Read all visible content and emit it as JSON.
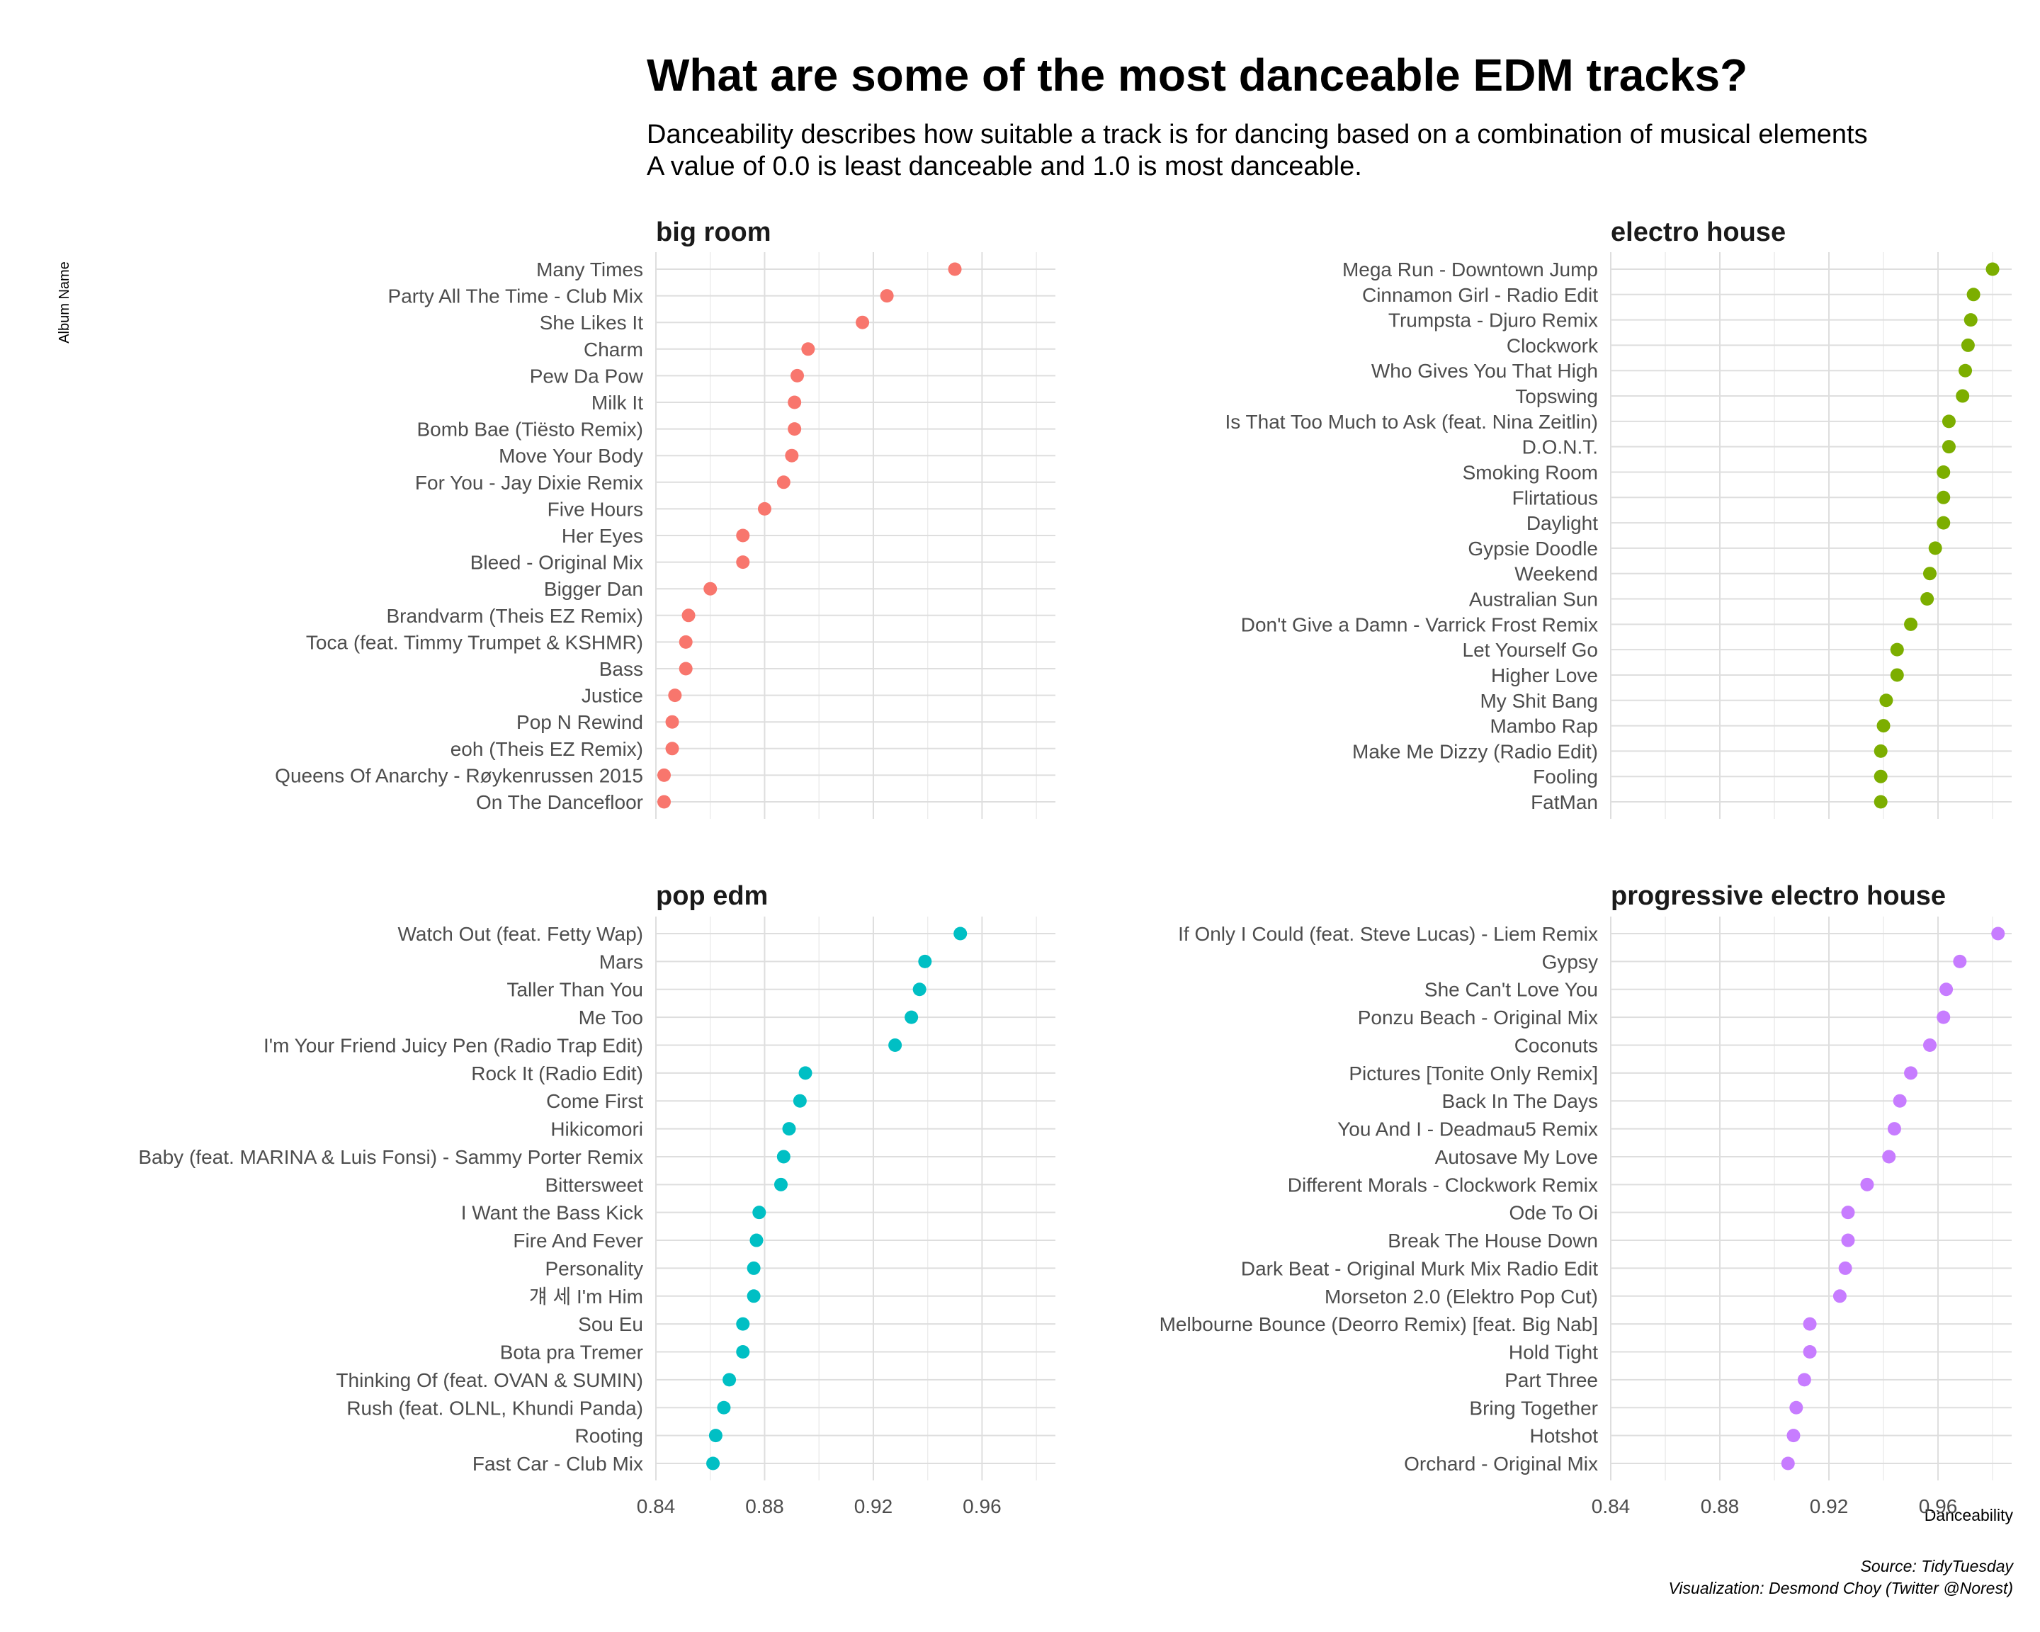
{
  "title": "What are some of the most danceable EDM tracks?",
  "subtitle_line1": "Danceability describes how suitable a track is for dancing based on a combination of musical elements",
  "subtitle_line2": "A value of 0.0 is least danceable and 1.0 is most danceable.",
  "caption_line1": "Source: TidyTuesday",
  "caption_line2": "Visualization: Desmond Choy (Twitter @Norest)",
  "chart_data": {
    "type": "scatter",
    "xlabel": "Danceability",
    "ylabel": "Album Name",
    "xlim": [
      0.84,
      0.987
    ],
    "xticks": [
      "0.84",
      "0.88",
      "0.92",
      "0.96"
    ],
    "xtick_values": [
      0.84,
      0.88,
      0.92,
      0.96
    ],
    "grid": true,
    "legend": "none",
    "panels": [
      {
        "name": "big room",
        "color": "#F8766D",
        "tracks": [
          "Many Times",
          "Party All The Time - Club Mix",
          "She Likes It",
          "Charm",
          "Pew Da Pow",
          "Milk It",
          "Bomb Bae (Tiësto Remix)",
          "Move Your Body",
          "For You - Jay Dixie Remix",
          "Five Hours",
          "Her Eyes",
          "Bleed - Original Mix",
          "Bigger Dan",
          "Brandvarm (Theis EZ Remix)",
          "Toca (feat. Timmy Trumpet & KSHMR)",
          "Bass",
          "Justice",
          "Pop N Rewind",
          "eoh (Theis EZ Remix)",
          "Queens Of Anarchy - Røykenrussen 2015",
          "On The Dancefloor"
        ],
        "values": [
          0.95,
          0.925,
          0.916,
          0.896,
          0.892,
          0.891,
          0.891,
          0.89,
          0.887,
          0.88,
          0.872,
          0.872,
          0.86,
          0.852,
          0.851,
          0.851,
          0.847,
          0.846,
          0.846,
          0.843,
          0.843
        ]
      },
      {
        "name": "electro house",
        "color": "#7CAE00",
        "tracks": [
          "Mega Run - Downtown Jump",
          "Cinnamon Girl - Radio Edit",
          "Trumpsta - Djuro Remix",
          "Clockwork",
          "Who Gives You That High",
          "Topswing",
          "Is That Too Much to Ask (feat. Nina Zeitlin)",
          "D.O.N.T.",
          "Smoking Room",
          "Flirtatious",
          "Daylight",
          "Gypsie Doodle",
          "Weekend",
          "Australian Sun",
          "Don't Give a Damn - Varrick Frost Remix",
          "Let Yourself Go",
          "Higher Love",
          "My Shit Bang",
          "Mambo Rap",
          "Make Me Dizzy (Radio Edit)",
          "Fooling",
          "FatMan"
        ],
        "values": [
          0.98,
          0.973,
          0.972,
          0.971,
          0.97,
          0.969,
          0.964,
          0.964,
          0.962,
          0.962,
          0.962,
          0.959,
          0.957,
          0.956,
          0.95,
          0.945,
          0.945,
          0.941,
          0.94,
          0.939,
          0.939,
          0.939
        ]
      },
      {
        "name": "pop edm",
        "color": "#00BFC4",
        "tracks": [
          "Watch Out (feat. Fetty Wap)",
          "Mars",
          "Taller Than You",
          "Me Too",
          "I'm Your Friend Juicy Pen (Radio Trap Edit)",
          "Rock It (Radio Edit)",
          "Come First",
          "Hikicomori",
          "Baby (feat. MARINA & Luis Fonsi) - Sammy Porter Remix",
          "Bittersweet",
          "I Want the Bass Kick",
          "Fire And Fever",
          "Personality",
          "걔 세 I'm Him",
          "Sou Eu",
          "Bota pra Tremer",
          "Thinking Of (feat. OVAN & SUMIN)",
          "Rush (feat. OLNL, Khundi Panda)",
          "Rooting",
          "Fast Car - Club Mix"
        ],
        "values": [
          0.952,
          0.939,
          0.937,
          0.934,
          0.928,
          0.895,
          0.893,
          0.889,
          0.887,
          0.886,
          0.878,
          0.877,
          0.876,
          0.876,
          0.872,
          0.872,
          0.867,
          0.865,
          0.862,
          0.861
        ]
      },
      {
        "name": "progressive electro house",
        "color": "#C77CFF",
        "tracks": [
          "If Only I Could (feat. Steve Lucas) - Liem Remix",
          "Gypsy",
          "She Can't Love You",
          "Ponzu Beach - Original Mix",
          "Coconuts",
          "Pictures [Tonite Only Remix]",
          "Back In The Days",
          "You And I - Deadmau5 Remix",
          "Autosave My Love",
          "Different Morals - Clockwork Remix",
          "Ode To Oi",
          "Break The House Down",
          "Dark Beat - Original Murk Mix Radio Edit",
          "Morseton 2.0 (Elektro Pop Cut)",
          "Melbourne Bounce (Deorro Remix) [feat. Big Nab]",
          "Hold Tight",
          "Part Three",
          "Bring Together",
          "Hotshot",
          "Orchard - Original Mix"
        ],
        "values": [
          0.982,
          0.968,
          0.963,
          0.962,
          0.957,
          0.95,
          0.946,
          0.944,
          0.942,
          0.934,
          0.927,
          0.927,
          0.926,
          0.924,
          0.913,
          0.913,
          0.911,
          0.908,
          0.907,
          0.905
        ]
      }
    ]
  }
}
